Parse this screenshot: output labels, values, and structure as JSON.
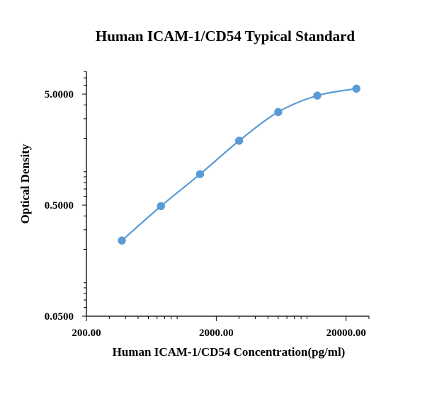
{
  "chart_data": {
    "type": "scatter",
    "title": "Human ICAM-1/CD54 Typical Standard",
    "xlabel": "Human ICAM-1/CD54 Concentration(pg/ml)",
    "ylabel": "Optical Density",
    "x_scale": "log",
    "y_scale": "log",
    "xlim": [
      200,
      30000
    ],
    "ylim": [
      0.05,
      8
    ],
    "x_tick_labels": [
      "200.00",
      "2000.00",
      "20000.00"
    ],
    "y_tick_labels": [
      "5.0000",
      "0.5000",
      "0.0500"
    ],
    "y_tick_values": [
      5,
      0.5,
      0.05
    ],
    "x_tick_values": [
      200,
      2000,
      20000
    ],
    "grid": false,
    "series": [
      {
        "x": [
          375,
          750,
          1500,
          3000,
          6000,
          12000,
          24000
        ],
        "y": [
          0.24,
          0.49,
          0.95,
          1.9,
          3.45,
          4.85,
          5.6
        ],
        "color": "#5b9bd5",
        "smooth_line": true
      }
    ]
  }
}
